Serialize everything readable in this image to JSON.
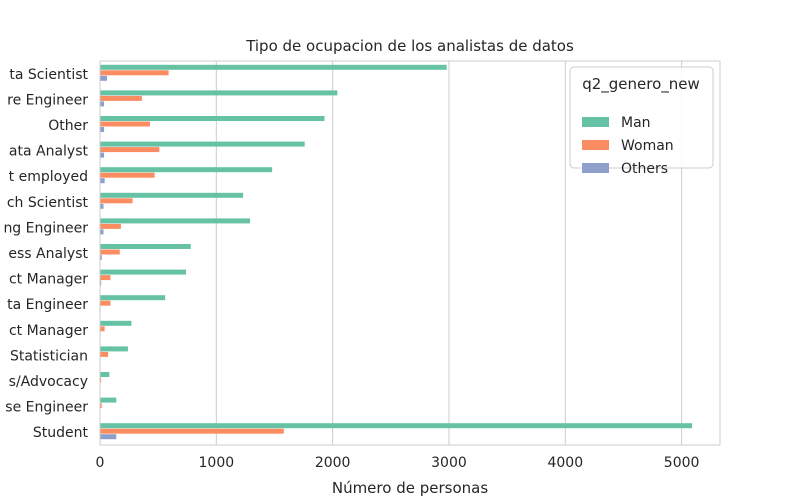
{
  "chart_data": {
    "type": "bar",
    "orientation": "horizontal",
    "title": "Tipo de ocupacion de los analistas de datos",
    "xlabel": "Número de personas",
    "ylabel": "",
    "xlim": [
      0,
      5330
    ],
    "xticks": [
      0,
      1000,
      2000,
      3000,
      4000,
      5000
    ],
    "grid": "vertical",
    "legend": {
      "title": "q2_genero_new",
      "placement": "top-right"
    },
    "categories": [
      "ta Scientist",
      "re Engineer",
      "Other",
      "ata Analyst",
      "t employed",
      "ch Scientist",
      "ng Engineer",
      "ess Analyst",
      "ct Manager",
      "ta Engineer",
      "ct Manager",
      "Statistician",
      "s/Advocacy",
      "se Engineer",
      "Student"
    ],
    "series": [
      {
        "name": "Man",
        "color": "#66c2a5",
        "values": [
          2980,
          2040,
          1930,
          1760,
          1480,
          1230,
          1290,
          780,
          740,
          560,
          270,
          240,
          80,
          140,
          5090
        ]
      },
      {
        "name": "Woman",
        "color": "#fc8d62",
        "values": [
          590,
          360,
          430,
          510,
          470,
          280,
          180,
          170,
          90,
          90,
          40,
          70,
          10,
          15,
          1580
        ]
      },
      {
        "name": "Others",
        "color": "#8da0cb",
        "values": [
          60,
          35,
          35,
          35,
          40,
          30,
          30,
          15,
          10,
          5,
          5,
          5,
          3,
          3,
          140
        ]
      }
    ]
  }
}
